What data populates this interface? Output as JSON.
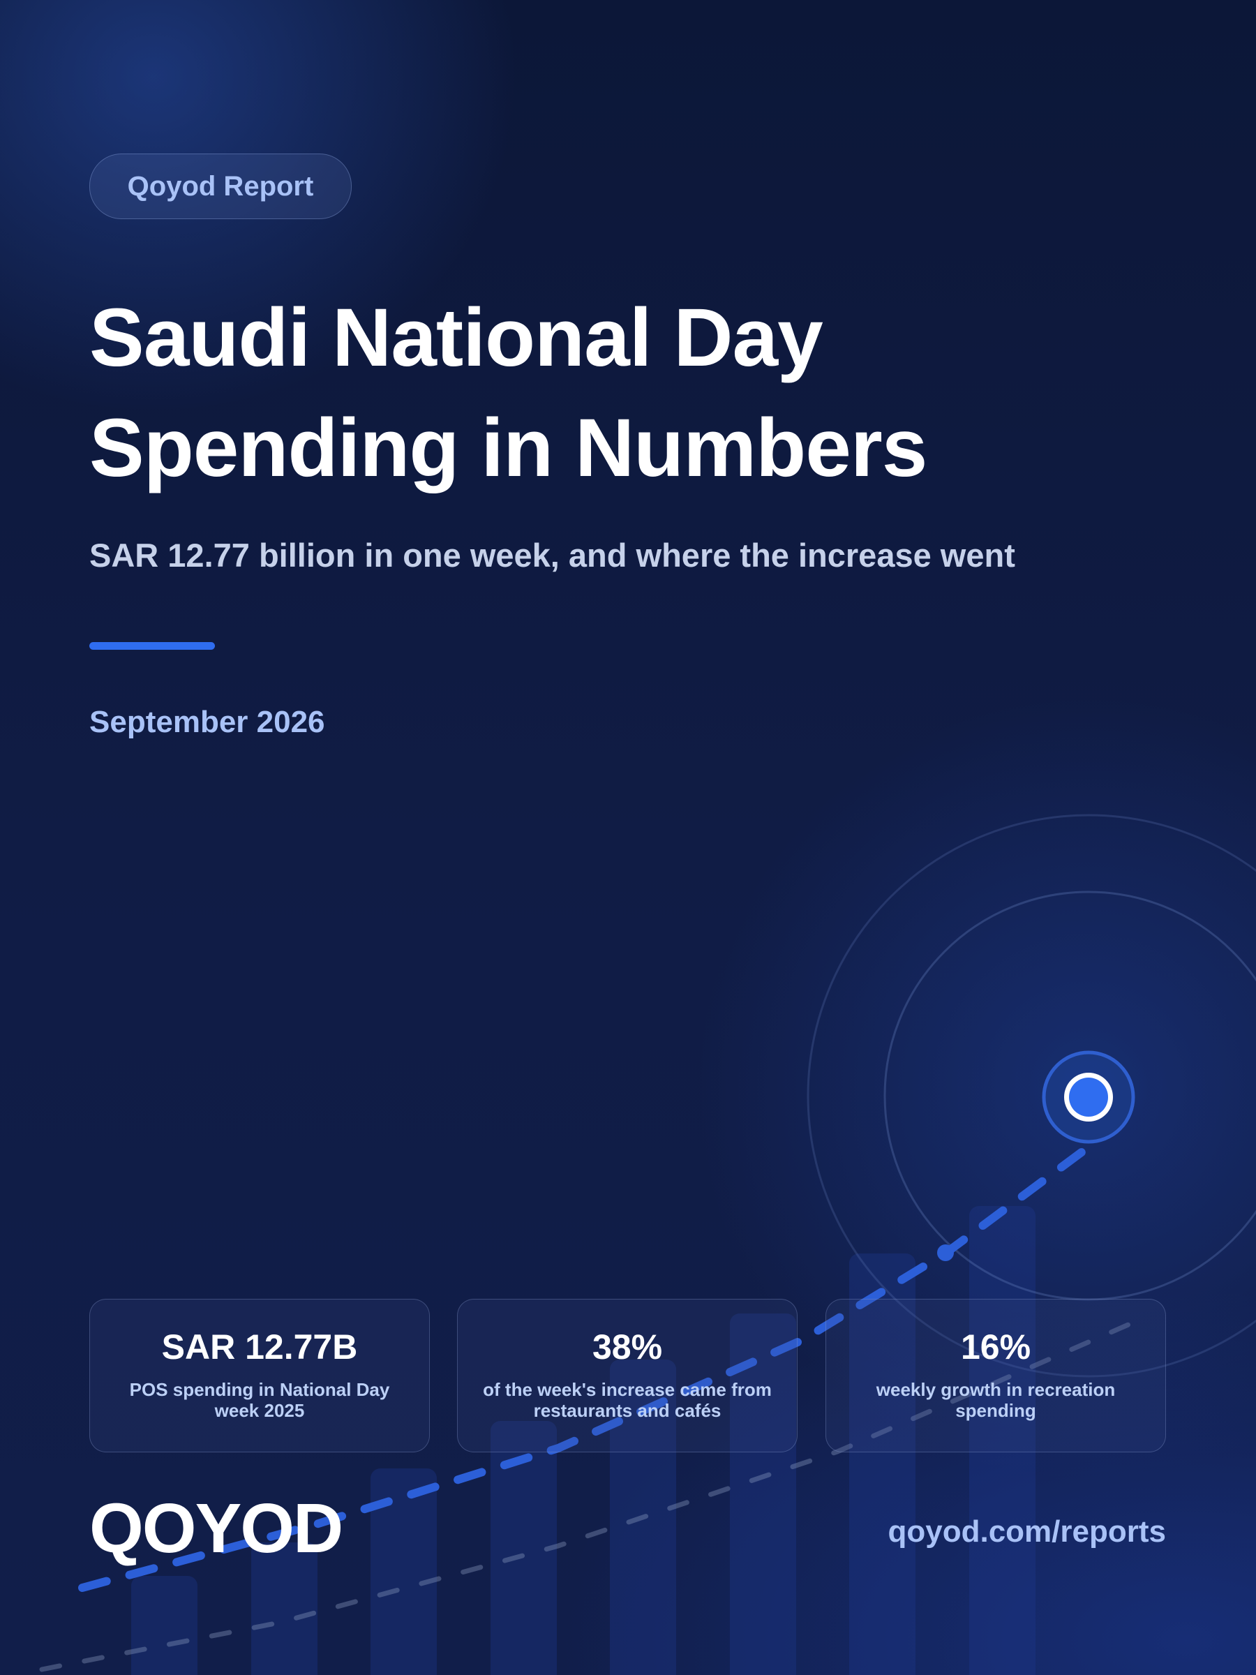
{
  "badge": {
    "label": "Qoyod Report"
  },
  "hero": {
    "title_line1": "Saudi National Day",
    "title_line2": "Spending in Numbers",
    "subtitle": "SAR 12.77 billion in one week, and where the increase went",
    "date": "September 2026"
  },
  "stats": [
    {
      "value": "SAR 12.77B",
      "label": "POS spending in National Day week 2025"
    },
    {
      "value": "38%",
      "label": "of the week's increase came from restaurants and cafés"
    },
    {
      "value": "16%",
      "label": "weekly growth in recreation spending"
    }
  ],
  "footer": {
    "logo_text": "QOYOD",
    "url": "qoyod.com/reports"
  },
  "colors": {
    "background": "#0f1a42",
    "accent": "#2f6df0",
    "light_blue_text": "#a9c2f7"
  },
  "icons": [
    "target-marker-icon"
  ]
}
